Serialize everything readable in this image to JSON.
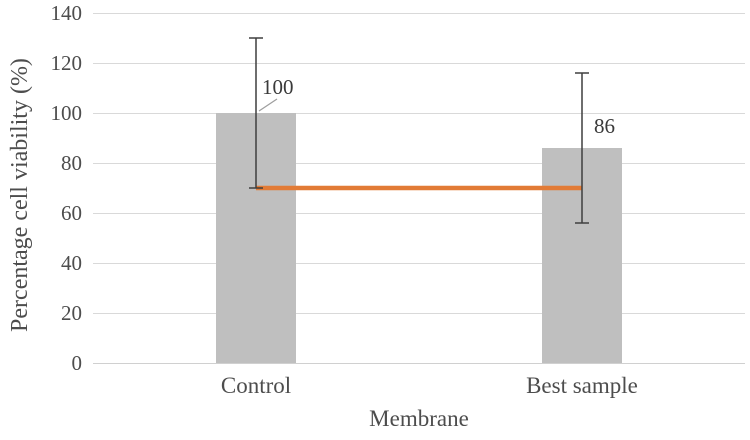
{
  "figure": {
    "background": "#ffffff",
    "text_color": "#4d4d4d"
  },
  "chart_data": {
    "type": "bar",
    "title": "",
    "categories": [
      "Control",
      "Best sample"
    ],
    "series": [
      {
        "name": "Percentage cell viability bars",
        "type": "bar",
        "color": "#bfbfbf",
        "values": [
          100,
          86
        ],
        "data_labels": [
          "100",
          "86"
        ],
        "error_bars": {
          "type": "symmetric",
          "values": [
            30,
            30
          ],
          "color": "#3f3f3f"
        }
      },
      {
        "name": "Reference line at 70%",
        "type": "line",
        "color": "#e27b36",
        "values": [
          70,
          70
        ]
      }
    ],
    "xlabel": "Membrane",
    "ylabel": "Percentage cell viability (%)",
    "ylim": [
      0,
      140
    ],
    "yticks": [
      0,
      20,
      40,
      60,
      80,
      100,
      120,
      140
    ],
    "grid": true,
    "legend": "none"
  }
}
